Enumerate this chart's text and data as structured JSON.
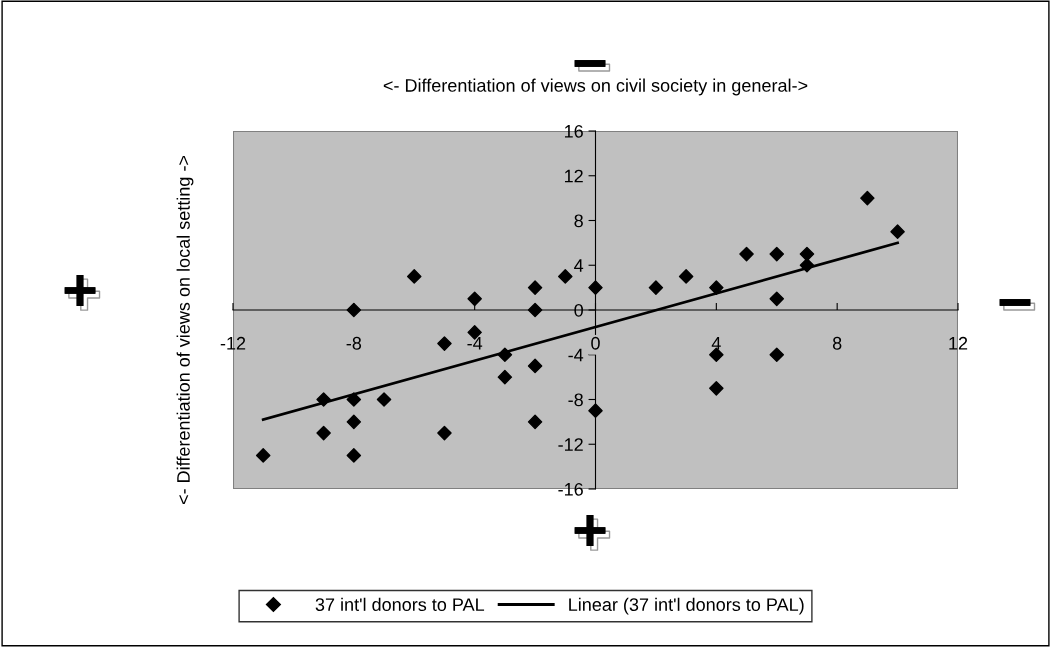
{
  "chart_data": {
    "type": "scatter",
    "title": "<- Differentiation of views on civil society in general->",
    "ylabel": "<- Differentiation of views on local setting ->",
    "annotations": [
      "−",
      "+",
      "−",
      "+"
    ],
    "xlim": [
      -12,
      12
    ],
    "xticks": [
      -12,
      -8,
      -4,
      0,
      4,
      8,
      12
    ],
    "ylim": [
      -16,
      16
    ],
    "yticks": [
      -16,
      -12,
      -8,
      -4,
      0,
      4,
      8,
      12,
      16
    ],
    "grid": false,
    "legend": "bottom",
    "series": [
      {
        "name": "37 int'l donors to PAL",
        "color": "#000000",
        "marker": "diamond",
        "x": [
          -8,
          -6,
          -4,
          -2,
          -1,
          -2,
          0,
          -4,
          -5,
          -3,
          -2,
          -3,
          -9,
          -8,
          -7,
          -8,
          -9,
          -5,
          -2,
          -11,
          -8,
          0,
          2,
          3,
          4,
          5,
          6,
          7,
          7,
          6,
          9,
          10,
          4,
          6,
          4
        ],
        "values": [
          0,
          3,
          1,
          2,
          3,
          0,
          2,
          -2,
          -3,
          -4,
          -5,
          -6,
          -8,
          -8,
          -8,
          -10,
          -11,
          -11,
          -10,
          -13,
          -13,
          -9,
          2,
          3,
          2,
          5,
          5,
          5,
          4,
          1,
          10,
          7,
          -4,
          -4,
          -7
        ]
      },
      {
        "name": "Linear (37 int'l donors to PAL)",
        "type": "line",
        "color": "#000000",
        "line_style": "solid",
        "x": [
          -11,
          10
        ],
        "values": [
          -9.8,
          6.0
        ]
      }
    ]
  }
}
